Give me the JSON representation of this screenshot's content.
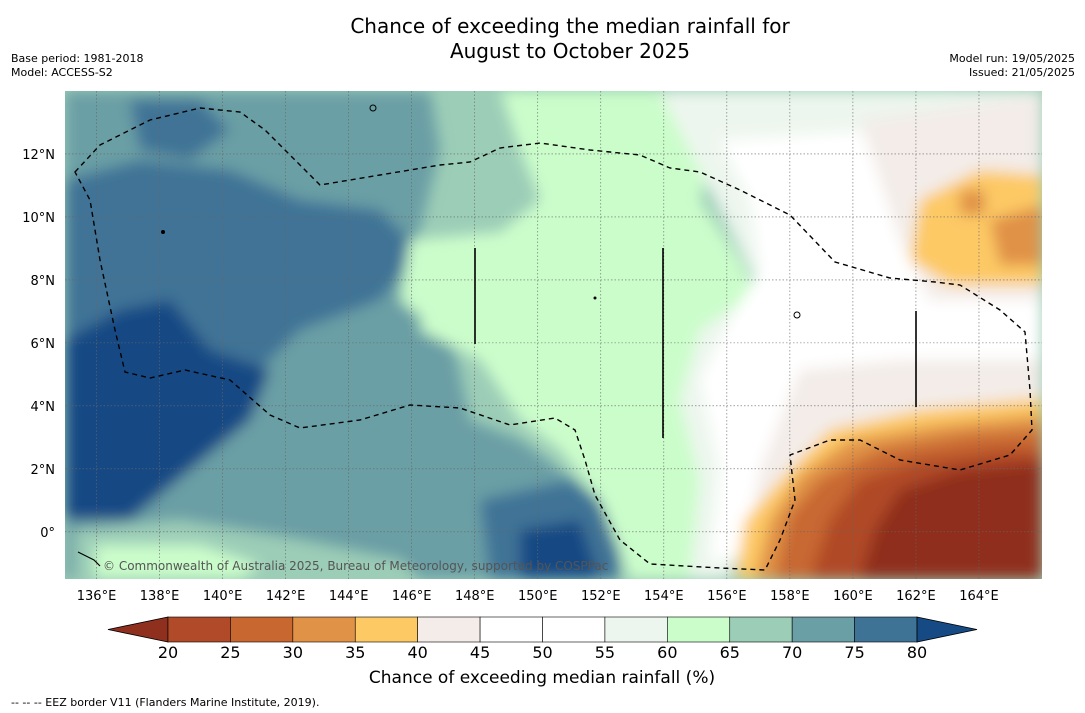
{
  "title": {
    "line1": "Chance of exceeding the median rainfall for",
    "line2": "August to October 2025"
  },
  "meta_left": {
    "base_period": "Base period: 1981-2018",
    "model": "Model: ACCESS-S2"
  },
  "meta_right": {
    "model_run": "Model run: 19/05/2025",
    "issued": "Issued: 21/05/2025"
  },
  "map": {
    "lon_range": [
      135,
      166
    ],
    "lat_range": [
      -1.5,
      14
    ],
    "x_tick_labels": [
      "136°E",
      "138°E",
      "140°E",
      "142°E",
      "144°E",
      "146°E",
      "148°E",
      "150°E",
      "152°E",
      "154°E",
      "156°E",
      "158°E",
      "160°E",
      "162°E",
      "164°E"
    ],
    "y_tick_labels": [
      "0°",
      "2°N",
      "4°N",
      "6°N",
      "8°N",
      "10°N",
      "12°N"
    ],
    "copyright": "© Commonwealth of Australia 2025, Bureau of Meteorology, supported by COSPPac"
  },
  "colorbar": {
    "ticks": [
      "20",
      "25",
      "30",
      "35",
      "40",
      "45",
      "50",
      "55",
      "60",
      "65",
      "70",
      "75",
      "80"
    ],
    "colors": [
      "#8f2f1e",
      "#b04a28",
      "#c86730",
      "#e09247",
      "#fdc965",
      "#f3ece8",
      "#ffffff",
      "#ffffff",
      "#edf6ee",
      "#cbfdcb",
      "#9ccdb7",
      "#6a9fa5",
      "#3f7396",
      "#154a84"
    ],
    "title": "Chance of exceeding median rainfall (%)"
  },
  "footnote": "--  --  -- EEZ border V11 (Flanders Marine Institute, 2019)."
}
